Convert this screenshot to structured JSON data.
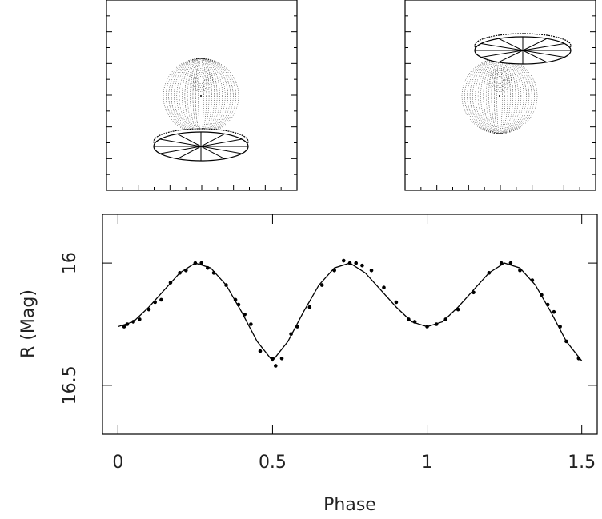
{
  "chart_data": {
    "type": "line",
    "x_label": "Phase",
    "y_label": "R (Mag)",
    "xlim": [
      -0.05,
      1.55
    ],
    "ylim": [
      16.7,
      15.8
    ],
    "xticks": [
      0,
      0.5,
      1,
      1.5
    ],
    "yticks": [
      16,
      16.5
    ],
    "series": [
      {
        "mode": "markers",
        "color": "#000000",
        "x": [
          0.02,
          0.03,
          0.05,
          0.07,
          0.1,
          0.12,
          0.14,
          0.17,
          0.2,
          0.22,
          0.25,
          0.27,
          0.29,
          0.31,
          0.35,
          0.38,
          0.39,
          0.41,
          0.43,
          0.46,
          0.5,
          0.51,
          0.53,
          0.56,
          0.58,
          0.62,
          0.66,
          0.7,
          0.73,
          0.75,
          0.77,
          0.79,
          0.82,
          0.86,
          0.9,
          0.94,
          0.96,
          1.0,
          1.03,
          1.06,
          1.1,
          1.15,
          1.2,
          1.24,
          1.27,
          1.3,
          1.34,
          1.37,
          1.39,
          1.41,
          1.43,
          1.45,
          1.49
        ],
        "values": [
          16.26,
          16.25,
          16.24,
          16.23,
          16.19,
          16.16,
          16.15,
          16.08,
          16.04,
          16.03,
          16.0,
          16.0,
          16.02,
          16.04,
          16.09,
          16.15,
          16.17,
          16.21,
          16.25,
          16.36,
          16.39,
          16.42,
          16.39,
          16.29,
          16.26,
          16.18,
          16.09,
          16.03,
          15.99,
          16.0,
          16.0,
          16.01,
          16.03,
          16.1,
          16.16,
          16.23,
          16.24,
          16.26,
          16.25,
          16.23,
          16.19,
          16.12,
          16.04,
          16.0,
          16.0,
          16.03,
          16.07,
          16.13,
          16.17,
          16.2,
          16.26,
          16.32,
          16.39
        ]
      },
      {
        "mode": "lines",
        "color": "#000000",
        "x": [
          0,
          0.05,
          0.1,
          0.15,
          0.2,
          0.25,
          0.3,
          0.35,
          0.4,
          0.45,
          0.5,
          0.55,
          0.6,
          0.65,
          0.7,
          0.75,
          0.8,
          0.85,
          0.9,
          0.95,
          1.0,
          1.05,
          1.1,
          1.15,
          1.2,
          1.25,
          1.3,
          1.35,
          1.4,
          1.45,
          1.5
        ],
        "values": [
          16.26,
          16.24,
          16.18,
          16.11,
          16.04,
          16.0,
          16.02,
          16.09,
          16.2,
          16.32,
          16.4,
          16.32,
          16.2,
          16.09,
          16.02,
          16.0,
          16.04,
          16.11,
          16.18,
          16.24,
          16.26,
          16.24,
          16.18,
          16.11,
          16.04,
          16.0,
          16.02,
          16.09,
          16.2,
          16.32,
          16.4
        ]
      }
    ]
  }
}
